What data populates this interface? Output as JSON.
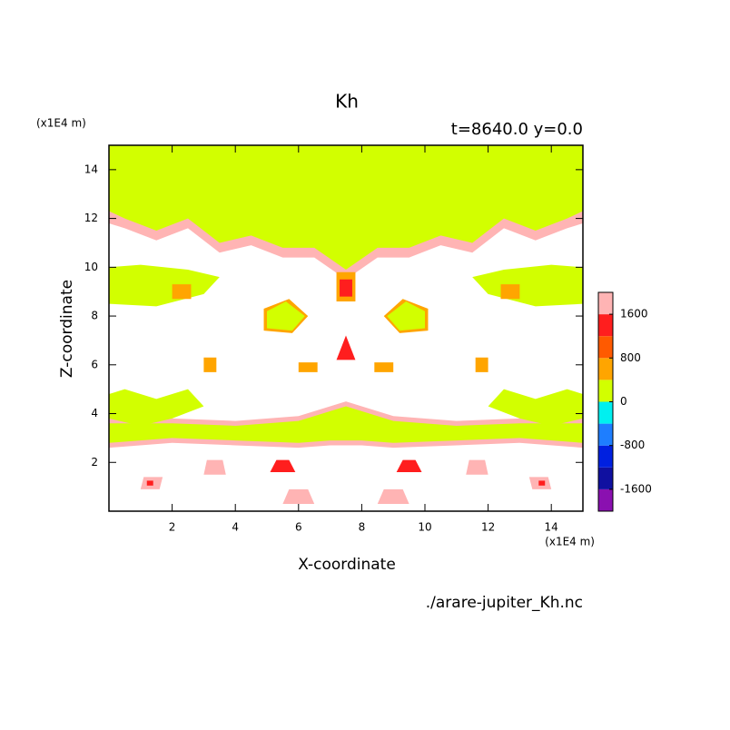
{
  "chart_data": {
    "type": "contour",
    "title": "Kh",
    "subtitle": "t=8640.0 y=0.0",
    "x_label": "X-coordinate",
    "y_label": "Z-coordinate",
    "x_unit": "(x1E4 m)",
    "y_unit": "(x1E4 m)",
    "source": "./arare-jupiter_Kh.nc",
    "xlim": [
      0,
      15
    ],
    "ylim": [
      0,
      15
    ],
    "xticks": [
      2,
      4,
      6,
      8,
      10,
      12,
      14
    ],
    "yticks": [
      2,
      4,
      6,
      8,
      10,
      12,
      14
    ],
    "colorbar": {
      "levels": [
        -2000,
        -1600,
        -1200,
        -800,
        -400,
        0,
        400,
        800,
        1200,
        1600,
        2000
      ],
      "colors": [
        "#8a10b0",
        "#1010a0",
        "#0020e0",
        "#1e7eff",
        "#00f0f0",
        "#d2ff00",
        "#ffa500",
        "#ff5a00",
        "#ff1e1e",
        "#ffb4b4"
      ],
      "ticks": [
        -1600,
        -800,
        0,
        800,
        1600
      ]
    },
    "regions": [
      {
        "lower": 1600,
        "x": [
          0,
          15,
          15,
          14.5,
          13.5,
          12.5,
          11.5,
          10.5,
          9.5,
          8.5,
          7.5,
          6.5,
          5.5,
          4.5,
          3.5,
          2.5,
          1.5,
          0.5,
          0
        ],
        "z": [
          15,
          15,
          11.8,
          11.6,
          11.1,
          11.6,
          10.6,
          10.9,
          10.4,
          10.4,
          9.5,
          10.4,
          10.4,
          10.9,
          10.6,
          11.6,
          11.1,
          11.6,
          11.8
        ]
      },
      {
        "lower": 0,
        "x": [
          0,
          15,
          15,
          14.5,
          13.5,
          12.5,
          11.5,
          10.5,
          9.5,
          8.5,
          7.5,
          6.5,
          5.5,
          4.5,
          3.5,
          2.5,
          1.5,
          0.5,
          0
        ],
        "z": [
          15,
          15,
          12.3,
          12.0,
          11.5,
          12.0,
          11.0,
          11.3,
          10.8,
          10.8,
          9.9,
          10.8,
          10.8,
          11.3,
          11.0,
          12.0,
          11.5,
          12.0,
          12.3
        ]
      },
      {
        "lower": 1600,
        "x": [
          0,
          2,
          4,
          6,
          7,
          7.5,
          8,
          9,
          11,
          13,
          15,
          15,
          13,
          11,
          9,
          8,
          7.5,
          7,
          6,
          4,
          2,
          0
        ],
        "z": [
          2.6,
          2.8,
          2.7,
          2.6,
          2.7,
          2.7,
          2.7,
          2.6,
          2.7,
          2.8,
          2.6,
          3.8,
          3.8,
          3.7,
          3.9,
          4.3,
          4.5,
          4.3,
          3.9,
          3.7,
          3.8,
          3.8
        ]
      },
      {
        "lower": 0,
        "x": [
          0,
          2,
          4,
          6,
          7,
          7.5,
          8,
          9,
          11,
          13,
          15,
          15,
          13,
          11,
          9,
          8,
          7.5,
          7,
          6,
          4,
          2,
          0
        ],
        "z": [
          2.8,
          3.0,
          2.9,
          2.8,
          2.9,
          2.9,
          2.9,
          2.8,
          2.9,
          3.0,
          2.8,
          3.6,
          3.6,
          3.5,
          3.7,
          4.1,
          4.3,
          4.1,
          3.7,
          3.5,
          3.6,
          3.6
        ]
      },
      {
        "lower": 0,
        "x": [
          0,
          1.5,
          3,
          3.5,
          2.5,
          1,
          0
        ],
        "z": [
          8.5,
          8.4,
          8.9,
          9.6,
          9.9,
          10.1,
          10.0
        ]
      },
      {
        "lower": 0,
        "x": [
          15,
          13.5,
          12,
          11.5,
          12.5,
          14,
          15
        ],
        "z": [
          8.5,
          8.4,
          8.9,
          9.6,
          9.9,
          10.1,
          10.0
        ]
      },
      {
        "lower": 0,
        "x": [
          0,
          1,
          2,
          3,
          2.5,
          1.5,
          0.5,
          0
        ],
        "z": [
          3.8,
          3.5,
          3.8,
          4.3,
          5.0,
          4.6,
          5.0,
          4.8
        ]
      },
      {
        "lower": 0,
        "x": [
          15,
          14,
          13,
          12,
          12.5,
          13.5,
          14.5,
          15
        ],
        "z": [
          3.8,
          3.5,
          3.8,
          4.3,
          5.0,
          4.6,
          5.0,
          4.8
        ]
      },
      {
        "lower": 400,
        "x": [
          7.2,
          7.8,
          7.8,
          7.2
        ],
        "z": [
          8.6,
          8.6,
          9.8,
          9.8
        ]
      },
      {
        "lower": 1200,
        "x": [
          7.3,
          7.7,
          7.7,
          7.3
        ],
        "z": [
          8.8,
          8.8,
          9.5,
          9.5
        ]
      },
      {
        "lower": 1200,
        "x": [
          7.2,
          7.8,
          7.5
        ],
        "z": [
          6.2,
          6.2,
          7.2
        ]
      },
      {
        "lower": 400,
        "x": [
          4.9,
          5.8,
          6.3,
          5.7,
          4.9
        ],
        "z": [
          7.4,
          7.3,
          8.0,
          8.7,
          8.3
        ]
      },
      {
        "lower": 0,
        "x": [
          5.0,
          5.8,
          6.2,
          5.6,
          5.0
        ],
        "z": [
          7.5,
          7.4,
          8.0,
          8.6,
          8.2
        ]
      },
      {
        "lower": 400,
        "x": [
          10.1,
          9.2,
          8.7,
          9.3,
          10.1
        ],
        "z": [
          7.4,
          7.3,
          8.0,
          8.7,
          8.3
        ]
      },
      {
        "lower": 0,
        "x": [
          10.0,
          9.2,
          8.8,
          9.4,
          10.0
        ],
        "z": [
          7.5,
          7.4,
          8.0,
          8.6,
          8.2
        ]
      },
      {
        "lower": 1600,
        "x": [
          1.0,
          1.6,
          1.7,
          1.1
        ],
        "z": [
          0.9,
          0.9,
          1.4,
          1.4
        ]
      },
      {
        "lower": 1200,
        "x": [
          1.2,
          1.4,
          1.4,
          1.2
        ],
        "z": [
          1.05,
          1.05,
          1.25,
          1.25
        ]
      },
      {
        "lower": 1600,
        "x": [
          13.4,
          14.0,
          13.9,
          13.3
        ],
        "z": [
          0.9,
          0.9,
          1.4,
          1.4
        ]
      },
      {
        "lower": 1200,
        "x": [
          13.6,
          13.8,
          13.8,
          13.6
        ],
        "z": [
          1.05,
          1.05,
          1.25,
          1.25
        ]
      },
      {
        "lower": 1600,
        "x": [
          5.5,
          6.5,
          6.3,
          5.7
        ],
        "z": [
          0.3,
          0.3,
          0.9,
          0.9
        ]
      },
      {
        "lower": 1600,
        "x": [
          8.5,
          9.5,
          9.3,
          8.7
        ],
        "z": [
          0.3,
          0.3,
          0.9,
          0.9
        ]
      },
      {
        "lower": 1600,
        "x": [
          3.0,
          3.7,
          3.6,
          3.1
        ],
        "z": [
          1.5,
          1.5,
          2.1,
          2.1
        ]
      },
      {
        "lower": 1600,
        "x": [
          11.3,
          12.0,
          11.9,
          11.4
        ],
        "z": [
          1.5,
          1.5,
          2.1,
          2.1
        ]
      },
      {
        "lower": 1200,
        "x": [
          5.1,
          5.9,
          5.7,
          5.3
        ],
        "z": [
          1.6,
          1.6,
          2.1,
          2.1
        ]
      },
      {
        "lower": 1200,
        "x": [
          9.1,
          9.9,
          9.7,
          9.3
        ],
        "z": [
          1.6,
          1.6,
          2.1,
          2.1
        ]
      },
      {
        "lower": 400,
        "x": [
          3.0,
          3.4,
          3.4,
          3.0
        ],
        "z": [
          5.7,
          5.7,
          6.3,
          6.3
        ]
      },
      {
        "lower": 400,
        "x": [
          11.6,
          12.0,
          12.0,
          11.6
        ],
        "z": [
          5.7,
          5.7,
          6.3,
          6.3
        ]
      },
      {
        "lower": 400,
        "x": [
          2.0,
          2.6,
          2.6,
          2.0
        ],
        "z": [
          8.7,
          8.7,
          9.3,
          9.3
        ]
      },
      {
        "lower": 400,
        "x": [
          12.4,
          13.0,
          13.0,
          12.4
        ],
        "z": [
          8.7,
          8.7,
          9.3,
          9.3
        ]
      },
      {
        "lower": 400,
        "x": [
          6.0,
          6.6,
          6.6,
          6.0
        ],
        "z": [
          5.7,
          5.7,
          6.1,
          6.1
        ]
      },
      {
        "lower": 400,
        "x": [
          8.4,
          9.0,
          9.0,
          8.4
        ],
        "z": [
          5.7,
          5.7,
          6.1,
          6.1
        ]
      }
    ]
  }
}
